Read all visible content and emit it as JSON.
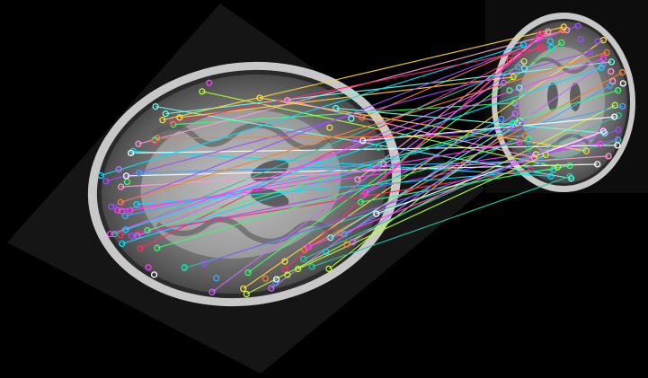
{
  "image": {
    "description_icon": "brain-mri-feature-matching",
    "background_color": "#000000",
    "left_scan": {
      "label": "",
      "tilt_degrees": -30
    },
    "right_scan": {
      "label": ""
    },
    "match_count": 60,
    "line_colors": [
      "#ff3cff",
      "#9d4dff",
      "#00e1ff",
      "#34ff6e",
      "#ffd83a",
      "#ff7d2a",
      "#3aa8ff",
      "#ff2a6a",
      "#b6ff3a",
      "#ffffff",
      "#26c9a0",
      "#c76bff",
      "#ff9ad5",
      "#6bffea"
    ]
  }
}
